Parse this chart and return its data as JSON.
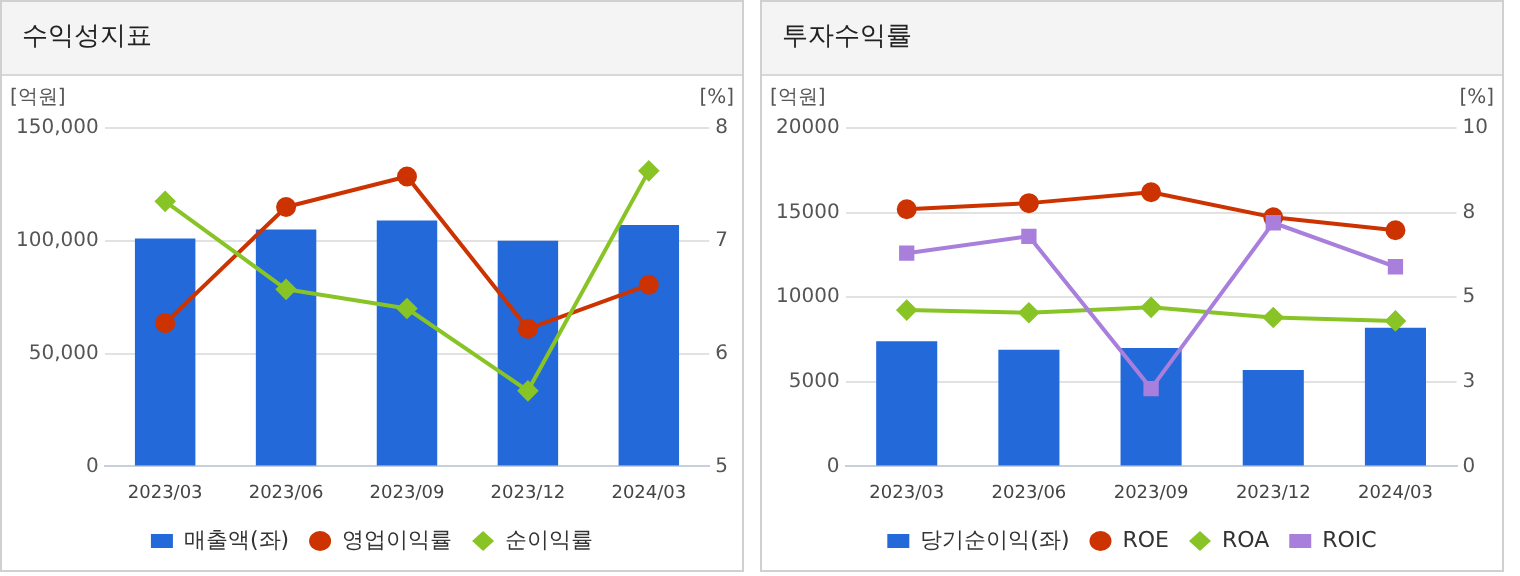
{
  "chart_data": [
    {
      "type": "bar",
      "title": "수익성지표",
      "ylabel": "[억원]",
      "y2label": "[%]",
      "categories": [
        "2023/03",
        "2023/06",
        "2023/09",
        "2023/12",
        "2024/03"
      ],
      "series": [
        {
          "name": "매출액(좌)",
          "color": "#2369d9",
          "values": [
            101000,
            105000,
            109000,
            100000,
            107000
          ]
        },
        {
          "name": "영업이익률",
          "type": "line",
          "axis": "y2",
          "marker": "circle",
          "color": "#cc3300",
          "values": [
            6.27,
            7.3,
            7.57,
            6.22,
            6.61
          ]
        },
        {
          "name": "순이익률",
          "type": "line",
          "axis": "y2",
          "marker": "diamond",
          "color": "#88c425",
          "values": [
            7.35,
            6.57,
            6.4,
            5.67,
            7.62
          ]
        }
      ],
      "ylim": [
        0,
        150000
      ],
      "yticks": [
        0,
        {
          "value": 50000,
          "label": "50,000"
        },
        {
          "value": 100000,
          "label": "100,000"
        },
        {
          "value": 150000,
          "label": "150,000"
        }
      ],
      "y2lim": [
        5,
        8
      ],
      "y2ticks": [
        5,
        6,
        7,
        8
      ],
      "grid": "y",
      "legend": "bottom"
    },
    {
      "type": "bar",
      "title": "투자수익률",
      "ylabel": "[억원]",
      "y2label": "[%]",
      "categories": [
        "2023/03",
        "2023/06",
        "2023/09",
        "2023/12",
        "2024/03"
      ],
      "series": [
        {
          "name": "당기순이익(좌)",
          "color": "#2369d9",
          "values": [
            7400,
            6900,
            7000,
            5700,
            8200
          ]
        },
        {
          "name": "ROE",
          "type": "line",
          "axis": "y2",
          "marker": "circle",
          "color": "#cc3300",
          "values": [
            7.6,
            7.78,
            8.1,
            7.36,
            6.98
          ]
        },
        {
          "name": "ROA",
          "type": "line",
          "axis": "y2",
          "marker": "diamond",
          "color": "#88c425",
          "values": [
            4.62,
            4.54,
            4.7,
            4.4,
            4.3
          ]
        },
        {
          "name": "ROIC",
          "type": "line",
          "axis": "y2",
          "marker": "square",
          "color": "#a97fdc",
          "values": [
            6.3,
            6.8,
            2.3,
            7.2,
            5.9
          ]
        }
      ],
      "ylim": [
        0,
        20000
      ],
      "yticks": [
        0,
        5000,
        10000,
        15000,
        20000
      ],
      "y2lim": [
        0,
        10
      ],
      "y2ticks": [
        0,
        {
          "value": 2.5,
          "label": "3"
        },
        5,
        {
          "value": 7.5,
          "label": "8"
        },
        10
      ],
      "grid": "y",
      "legend": "bottom"
    }
  ]
}
